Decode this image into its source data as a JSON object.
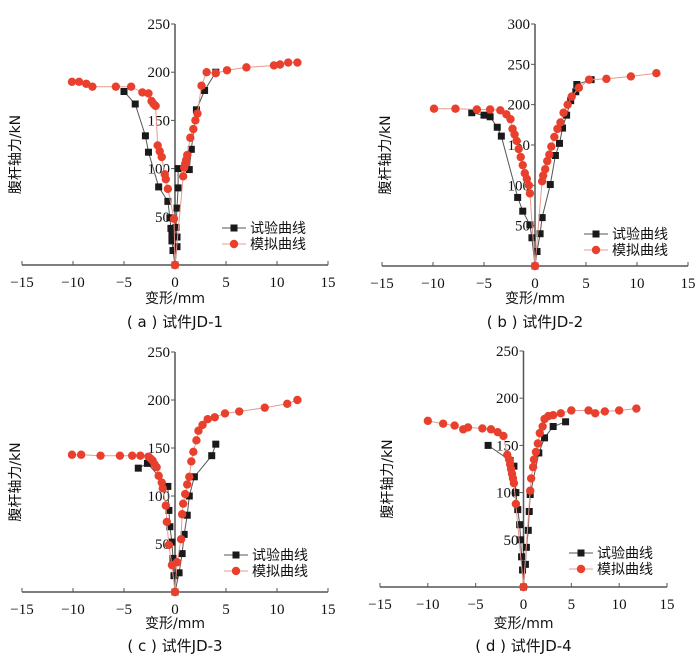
{
  "chart_data": [
    {
      "type": "scatter",
      "panel": "a",
      "title": "",
      "caption": "( a ) 试件JD-1",
      "xlabel": "变形/mm",
      "ylabel": "腹杆轴力/kN",
      "xlim": [
        -15,
        15
      ],
      "ylim": [
        0,
        250
      ],
      "xticks": [
        -15,
        -10,
        -5,
        0,
        5,
        10,
        15
      ],
      "xtick_labels": [
        "−15",
        "−10",
        "−5",
        "0",
        "5",
        "10",
        "15"
      ],
      "yticks": [
        50,
        100,
        150,
        200,
        250
      ],
      "ytick_labels": [
        "50",
        "100",
        "150",
        "200",
        "250"
      ],
      "grid": false,
      "legend_position": "bottom-right",
      "series": [
        {
          "name": "试验曲线",
          "color": "#1a1a1a",
          "line_color": "#555555",
          "marker": "square",
          "x": [
            0,
            -0.2,
            -0.3,
            -0.3,
            -0.4,
            -0.5,
            -0.7,
            -1.6,
            -2.6,
            -2.9,
            -3.9,
            -5.0
          ],
          "y": [
            0,
            15,
            25,
            32,
            38,
            49,
            66,
            81,
            117,
            134,
            167,
            180
          ],
          "x_pos": [
            0,
            0.2,
            0.2,
            0.1,
            0.2,
            0.3,
            0.3,
            1.4,
            1.6,
            2.1,
            2.9,
            4.0
          ],
          "y_pos": [
            0,
            19,
            29,
            39,
            59,
            80,
            100,
            99,
            120,
            161,
            181,
            200
          ]
        },
        {
          "name": "模拟曲线",
          "color": "#e8402d",
          "line_color": "#e89a90",
          "marker": "circle",
          "x": [
            0,
            -0.1,
            -0.7,
            -0.9,
            -1.0,
            -1.3,
            -1.5,
            -1.7,
            -1.9,
            -2.1,
            -2.3,
            -2.6,
            -3.2,
            -4.3,
            -5.8,
            -8.1,
            -8.7,
            -9.4,
            -10.1
          ],
          "y": [
            0,
            48,
            79,
            89,
            94,
            112,
            118,
            124,
            165,
            167,
            170,
            178,
            179,
            185,
            185,
            185,
            188,
            190,
            190
          ],
          "x_pos": [
            0,
            0.8,
            0.9,
            1.0,
            1.1,
            1.2,
            1.5,
            1.8,
            2.0,
            2.2,
            2.6,
            3.1,
            4.0,
            5.1,
            7.0,
            9.7,
            10.3,
            11.1,
            12.0
          ],
          "y_pos": [
            0,
            92,
            101,
            105,
            109,
            114,
            132,
            141,
            150,
            157,
            186,
            200,
            199,
            202,
            205,
            207,
            208,
            210,
            210
          ]
        }
      ]
    },
    {
      "type": "scatter",
      "panel": "b",
      "title": "",
      "caption": "( b ) 试件JD-2",
      "xlabel": "变形/mm",
      "ylabel": "腹杆轴力/kN",
      "xlim": [
        -15,
        15
      ],
      "ylim": [
        0,
        300
      ],
      "xticks": [
        -15,
        -10,
        -5,
        0,
        5,
        10,
        15
      ],
      "xtick_labels": [
        "−15",
        "−10",
        "−5",
        "0",
        "5",
        "10",
        "15"
      ],
      "yticks": [
        50,
        100,
        150,
        200,
        250,
        300
      ],
      "ytick_labels": [
        "50",
        "100",
        "150",
        "200",
        "250",
        "300"
      ],
      "grid": false,
      "legend_position": "bottom-right",
      "series": [
        {
          "name": "试验曲线",
          "color": "#1a1a1a",
          "line_color": "#555555",
          "marker": "square",
          "x": [
            0,
            -0.3,
            -0.5,
            -1.2,
            -1.7,
            -3.3,
            -3.7,
            -4.4,
            -5.0,
            -6.2
          ],
          "y": [
            0,
            35,
            51,
            68,
            85,
            161,
            172,
            185,
            187,
            190
          ],
          "x_pos": [
            0,
            0.2,
            0.5,
            0.7,
            1.5,
            2.0,
            2.4,
            2.7,
            3.1,
            3.5,
            4.0,
            4.1,
            5.5
          ],
          "y_pos": [
            0,
            18,
            40,
            60,
            101,
            137,
            152,
            171,
            187,
            205,
            216,
            225,
            231
          ]
        },
        {
          "name": "模拟曲线",
          "color": "#e8402d",
          "line_color": "#e89a90",
          "marker": "circle",
          "x": [
            0,
            -0.5,
            -0.6,
            -0.8,
            -1.0,
            -1.2,
            -1.4,
            -1.6,
            -1.8,
            -2.0,
            -2.2,
            -2.4,
            -2.8,
            -3.4,
            -4.4,
            -5.7,
            -7.8,
            -9.9
          ],
          "y": [
            0,
            90,
            100,
            108,
            115,
            125,
            135,
            145,
            155,
            163,
            170,
            182,
            188,
            193,
            194,
            194,
            195,
            195
          ],
          "x_pos": [
            0,
            0.7,
            0.8,
            1.0,
            1.2,
            1.4,
            1.6,
            1.9,
            2.2,
            2.5,
            2.8,
            3.2,
            3.6,
            4.3,
            5.3,
            7.0,
            9.4,
            11.9
          ],
          "y_pos": [
            0,
            105,
            112,
            120,
            130,
            138,
            148,
            160,
            170,
            178,
            190,
            200,
            210,
            221,
            231,
            232,
            235,
            239
          ]
        }
      ]
    },
    {
      "type": "scatter",
      "panel": "c",
      "title": "",
      "caption": "( c ) 试件JD-3",
      "xlabel": "变形/mm",
      "ylabel": "腹杆轴力/kN",
      "xlim": [
        -15,
        15
      ],
      "ylim": [
        0,
        250
      ],
      "xticks": [
        -15,
        -10,
        -5,
        0,
        5,
        10,
        15
      ],
      "xtick_labels": [
        "−15",
        "−10",
        "−5",
        "0",
        "5",
        "10",
        "15"
      ],
      "yticks": [
        50,
        100,
        150,
        200,
        250
      ],
      "ytick_labels": [
        "50",
        "100",
        "150",
        "200",
        "250"
      ],
      "grid": false,
      "legend_position": "bottom-right",
      "series": [
        {
          "name": "试验曲线",
          "color": "#1a1a1a",
          "line_color": "#555555",
          "marker": "square",
          "x": [
            0,
            -0.1,
            -0.2,
            -0.3,
            -0.5,
            -0.6,
            -0.7,
            -2.7,
            -3.6
          ],
          "y": [
            0,
            17,
            35,
            52,
            68,
            85,
            110,
            134,
            129
          ],
          "x_pos": [
            0,
            0.4,
            0.7,
            0.9,
            1.2,
            1.4,
            1.9,
            3.6,
            4.0
          ],
          "y_pos": [
            0,
            20,
            40,
            60,
            80,
            100,
            120,
            142,
            154
          ]
        },
        {
          "name": "模拟曲线",
          "color": "#e8402d",
          "line_color": "#e89a90",
          "marker": "circle",
          "x": [
            0,
            -0.3,
            -0.6,
            -0.8,
            -0.9,
            -1.2,
            -1.3,
            -1.6,
            -1.8,
            -2.0,
            -2.2,
            -2.4,
            -2.6,
            -3.4,
            -4.2,
            -5.4,
            -7.3,
            -9.2,
            -10.1
          ],
          "y": [
            0,
            28,
            49,
            73,
            90,
            108,
            114,
            121,
            130,
            133,
            137,
            139,
            141,
            142,
            142,
            142,
            142,
            143,
            143
          ],
          "x_pos": [
            0,
            0.2,
            0.6,
            0.7,
            0.8,
            1.0,
            1.2,
            1.4,
            1.6,
            1.8,
            2.1,
            2.3,
            2.7,
            3.2,
            3.9,
            4.9,
            6.3,
            8.8,
            11.0,
            12.0
          ],
          "y_pos": [
            0,
            31,
            55,
            81,
            92,
            102,
            112,
            120,
            136,
            146,
            158,
            168,
            174,
            180,
            182,
            186,
            188,
            192,
            196,
            200
          ]
        }
      ]
    },
    {
      "type": "scatter",
      "panel": "d",
      "title": "",
      "caption": "( d ) 试件JD-4",
      "xlabel": "变形/mm",
      "ylabel": "腹杆轴力/kN",
      "xlim": [
        -15,
        15
      ],
      "ylim": [
        0,
        250
      ],
      "xticks": [
        -15,
        -10,
        -5,
        0,
        5,
        10,
        15
      ],
      "xtick_labels": [
        "−15",
        "−10",
        "−5",
        "0",
        "5",
        "10",
        "15"
      ],
      "yticks": [
        50,
        100,
        150,
        200,
        250
      ],
      "ytick_labels": [
        "50",
        "100",
        "150",
        "200",
        "250"
      ],
      "grid": false,
      "legend_position": "bottom-right",
      "series": [
        {
          "name": "试验曲线",
          "color": "#1a1a1a",
          "line_color": "#555555",
          "marker": "square",
          "x": [
            0,
            -0.1,
            -0.2,
            -0.3,
            -0.4,
            -0.6,
            -0.8,
            -1.0,
            -1.4,
            -3.7
          ],
          "y": [
            0,
            18,
            32,
            50,
            66,
            82,
            100,
            128,
            134,
            150
          ],
          "x_pos": [
            0,
            0.2,
            0.3,
            0.5,
            0.6,
            0.7,
            1.6,
            2.2,
            3.1,
            4.4
          ],
          "y_pos": [
            0,
            24,
            42,
            60,
            80,
            98,
            142,
            158,
            170,
            175
          ]
        },
        {
          "name": "模拟曲线",
          "color": "#e8402d",
          "line_color": "#e89a90",
          "marker": "circle",
          "x": [
            0,
            -0.8,
            -1.0,
            -1.1,
            -1.2,
            -1.3,
            -1.4,
            -1.5,
            -1.7,
            -2.1,
            -2.7,
            -3.4,
            -4.3,
            -5.8,
            -6.3,
            -7.2,
            -8.4,
            -10.0
          ],
          "y": [
            0,
            88,
            110,
            115,
            120,
            125,
            130,
            135,
            140,
            160,
            164,
            167,
            168,
            169,
            167,
            171,
            173,
            176
          ],
          "x_pos": [
            0,
            0.7,
            0.8,
            1.0,
            1.1,
            1.3,
            1.5,
            1.7,
            2.0,
            2.2,
            2.6,
            3.1,
            3.9,
            5.0,
            6.8,
            7.5,
            8.5,
            10.0,
            11.8
          ],
          "y_pos": [
            0,
            102,
            115,
            127,
            135,
            143,
            152,
            163,
            170,
            178,
            181,
            182,
            184,
            187,
            187,
            184,
            186,
            187,
            189
          ]
        }
      ]
    }
  ],
  "legend": {
    "test_label": "试验曲线",
    "sim_label": "模拟曲线"
  }
}
